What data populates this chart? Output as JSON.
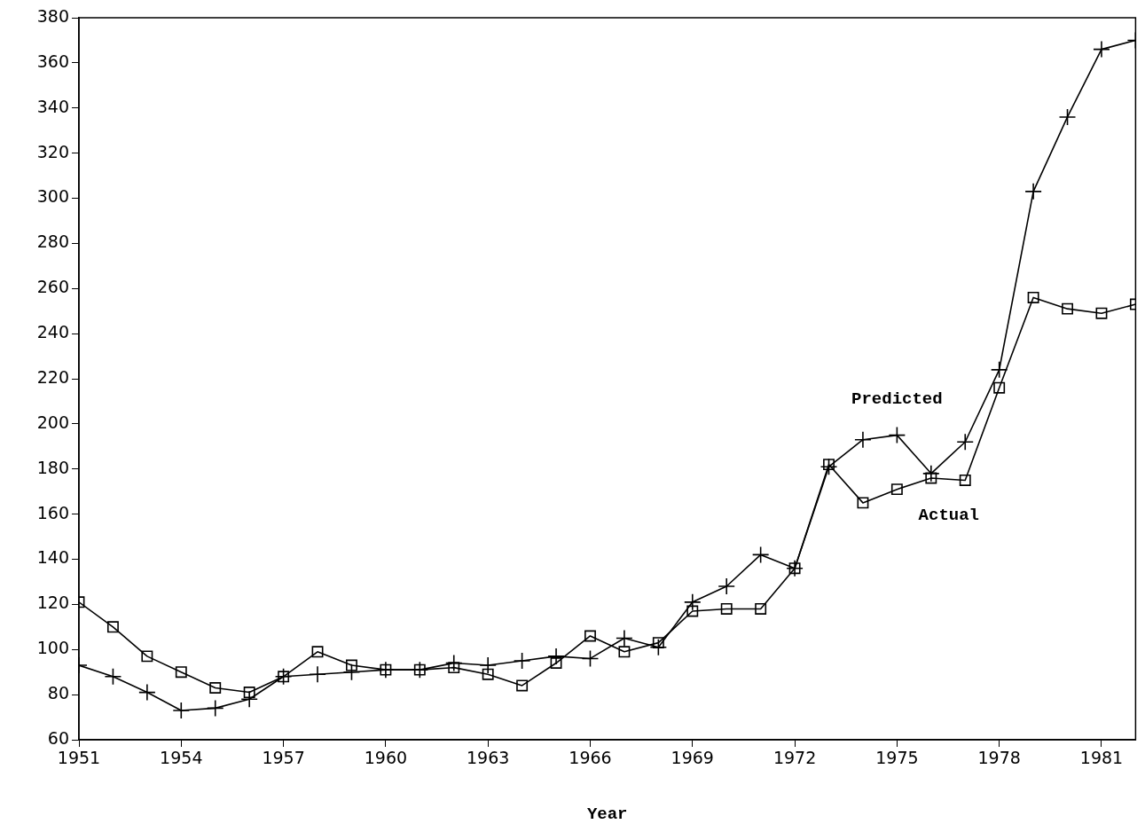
{
  "chart_data": {
    "type": "line",
    "xlabel": "Year",
    "x": [
      1951,
      1952,
      1953,
      1954,
      1955,
      1956,
      1957,
      1958,
      1959,
      1960,
      1961,
      1962,
      1963,
      1964,
      1965,
      1966,
      1967,
      1968,
      1969,
      1970,
      1971,
      1972,
      1973,
      1974,
      1975,
      1976,
      1977,
      1978,
      1979,
      1980,
      1981,
      1982
    ],
    "series": [
      {
        "name": "Actual",
        "color": "#000000",
        "marker": "square",
        "values": [
          121,
          110,
          97,
          90,
          83,
          81,
          88,
          99,
          93,
          91,
          91,
          92,
          89,
          84,
          94,
          106,
          99,
          103,
          117,
          118,
          118,
          136,
          182,
          165,
          171,
          176,
          175,
          216,
          256,
          251,
          249,
          253
        ]
      },
      {
        "name": "Predicted",
        "color": "#000000",
        "marker": "cross",
        "values": [
          93,
          88,
          81,
          73,
          74,
          78,
          88,
          89,
          90,
          91,
          91,
          94,
          93,
          95,
          97,
          96,
          105,
          101,
          121,
          128,
          142,
          136,
          181,
          193,
          195,
          178,
          192,
          224,
          303,
          336,
          366,
          370
        ]
      }
    ],
    "xlim": [
      1951,
      1982
    ],
    "xticks": [
      1951,
      1954,
      1957,
      1960,
      1963,
      1966,
      1969,
      1972,
      1975,
      1978,
      1981
    ],
    "ylim": [
      60,
      380
    ],
    "yticks": [
      60,
      80,
      100,
      120,
      140,
      160,
      180,
      200,
      220,
      240,
      260,
      280,
      300,
      320,
      340,
      360,
      380
    ],
    "grid": false,
    "legend": false,
    "line_style": "solid"
  }
}
